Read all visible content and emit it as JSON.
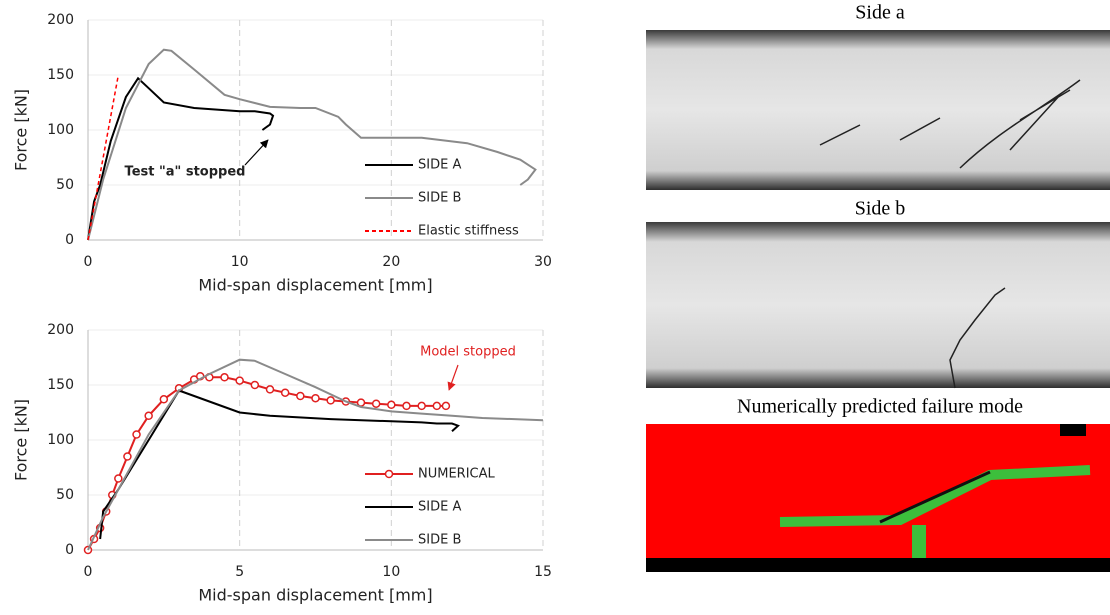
{
  "chart_data": [
    {
      "type": "line",
      "xlabel": "Mid-span displacement  [mm]",
      "ylabel": "Force [kN]",
      "xlim": [
        0,
        30
      ],
      "xticks": [
        0,
        10,
        20,
        30
      ],
      "ylim": [
        0,
        200
      ],
      "yticks": [
        0,
        50,
        100,
        150,
        200
      ],
      "grid": true,
      "legend": "lower right",
      "annotation": "Test  \"a\" stopped",
      "series": [
        {
          "name": "SIDE A",
          "color": "#000000",
          "style": "solid",
          "x": [
            0,
            0.4,
            0.8,
            1.5,
            2.5,
            3.3,
            4,
            5,
            7,
            10,
            11,
            11.5,
            12,
            12.2,
            12,
            11.5
          ],
          "values": [
            0,
            35,
            50,
            90,
            130,
            147,
            138,
            125,
            120,
            117,
            117,
            116,
            115,
            113,
            105,
            100
          ]
        },
        {
          "name": "SIDE B",
          "color": "#8a8a8a",
          "style": "solid",
          "x": [
            0,
            1,
            2.5,
            4,
            5,
            5.5,
            7,
            9,
            10,
            12,
            14,
            15,
            16.5,
            17,
            18,
            22,
            25,
            27,
            28.5,
            29.5,
            29,
            28.5
          ],
          "values": [
            0,
            55,
            120,
            160,
            173,
            172,
            155,
            132,
            128,
            121,
            120,
            120,
            112,
            105,
            93,
            93,
            88,
            80,
            73,
            64,
            55,
            50
          ]
        },
        {
          "name": "Elastic stiffness",
          "color": "#ff0000",
          "style": "dashed",
          "x": [
            0,
            2
          ],
          "values": [
            0,
            150
          ]
        }
      ]
    },
    {
      "type": "line",
      "xlabel": "Mid-span displacement  [mm]",
      "ylabel": "Force [kN]",
      "xlim": [
        0,
        15
      ],
      "xticks": [
        0,
        5,
        10,
        15
      ],
      "ylim": [
        0,
        200
      ],
      "yticks": [
        0,
        50,
        100,
        150,
        200
      ],
      "grid": true,
      "legend": "lower right",
      "annotation": "Model stopped",
      "series": [
        {
          "name": "NUMERICAL",
          "color": "#e02020",
          "style": "solid",
          "marker": "circle",
          "x": [
            0,
            0.2,
            0.4,
            0.6,
            0.8,
            1,
            1.3,
            1.6,
            2,
            2.5,
            3,
            3.5,
            3.7,
            4,
            4.5,
            5,
            5.5,
            6,
            6.5,
            7,
            7.5,
            8,
            8.5,
            9,
            9.5,
            10,
            10.5,
            11,
            11.5,
            11.8
          ],
          "values": [
            0,
            10,
            20,
            35,
            50,
            65,
            85,
            105,
            122,
            137,
            147,
            155,
            158,
            157,
            157,
            154,
            150,
            146,
            143,
            140,
            138,
            136,
            135,
            134,
            133,
            132,
            131,
            131,
            131,
            131
          ]
        },
        {
          "name": "SIDE A",
          "color": "#000000",
          "style": "solid",
          "x": [
            0.4,
            0.5,
            1,
            2,
            3,
            3.5,
            4.5,
            5,
            6,
            8,
            10,
            11,
            11.5,
            12,
            12.2,
            12
          ],
          "values": [
            10,
            35,
            55,
            100,
            145,
            140,
            130,
            125,
            122,
            119,
            117,
            116,
            115,
            115,
            113,
            108
          ]
        },
        {
          "name": "SIDE B",
          "color": "#8a8a8a",
          "style": "solid",
          "x": [
            0,
            0.5,
            1,
            2,
            3,
            4,
            5,
            5.5,
            6.5,
            7.5,
            8.5,
            9,
            10,
            11,
            12,
            13,
            15
          ],
          "values": [
            0,
            30,
            55,
            105,
            145,
            160,
            173,
            172,
            160,
            148,
            135,
            130,
            126,
            124,
            122,
            120,
            118
          ]
        }
      ]
    }
  ],
  "images": [
    {
      "caption": "Side a"
    },
    {
      "caption": "Side b"
    },
    {
      "caption": "Numerically predicted failure mode"
    }
  ]
}
